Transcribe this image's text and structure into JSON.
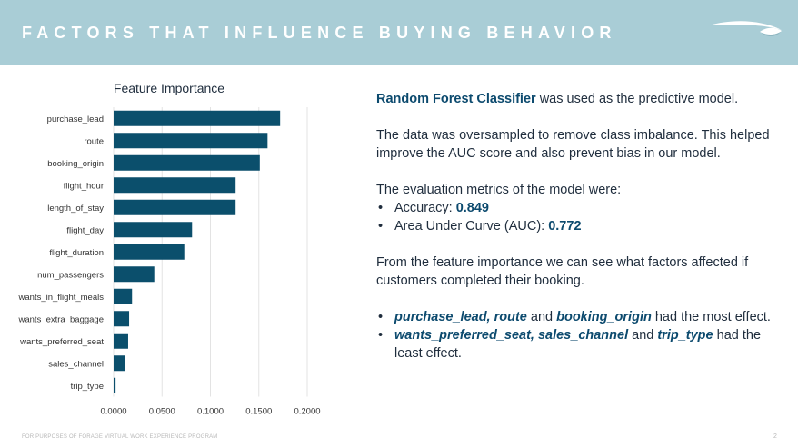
{
  "header": {
    "title": "FACTORS THAT INFLUENCE BUYING BEHAVIOR",
    "logo_icon": "speedmarque-logo-icon"
  },
  "chart_data": {
    "type": "bar",
    "orientation": "horizontal",
    "title": "Feature Importance",
    "xlabel": "",
    "ylabel": "",
    "xlim": [
      0,
      0.2
    ],
    "xticks": [
      "0.0000",
      "0.0500",
      "0.1000",
      "0.1500",
      "0.2000"
    ],
    "xtick_values": [
      0,
      0.05,
      0.1,
      0.15,
      0.2
    ],
    "grid": "vertical",
    "bar_color": "#0b4f6c",
    "categories": [
      "purchase_lead",
      "route",
      "booking_origin",
      "flight_hour",
      "length_of_stay",
      "flight_day",
      "flight_duration",
      "num_passengers",
      "wants_in_flight_meals",
      "wants_extra_baggage",
      "wants_preferred_seat",
      "sales_channel",
      "trip_type"
    ],
    "values": [
      0.172,
      0.159,
      0.151,
      0.126,
      0.126,
      0.081,
      0.073,
      0.042,
      0.019,
      0.016,
      0.015,
      0.012,
      0.002
    ]
  },
  "summary": {
    "model_name": "Random Forest Classifier",
    "model_sentence": " was used as the predictive model.",
    "oversampling": "The data was oversampled to remove class imbalance. This helped improve the AUC score and also prevent bias in our model.",
    "metrics_intro": "The evaluation metrics of the model were:",
    "metrics": [
      {
        "label": "Accuracy: ",
        "value": "0.849"
      },
      {
        "label": "Area Under Curve (AUC): ",
        "value": "0.772"
      }
    ],
    "importance_intro": "From the feature importance we can see what factors affected if customers completed their booking.",
    "most": {
      "f1": "purchase_lead, route",
      "and": " and ",
      "f2": "booking_origin",
      "rest": "  had the most effect."
    },
    "least": {
      "f1": "wants_preferred_seat, sales_channel",
      "and": " and ",
      "f2": "trip_type",
      "rest": " had the least effect."
    }
  },
  "footer": {
    "note": "FOR PURPOSES OF FORAGE VIRTUAL WORK EXPERIENCE PROGRAM",
    "page_number": "2"
  }
}
